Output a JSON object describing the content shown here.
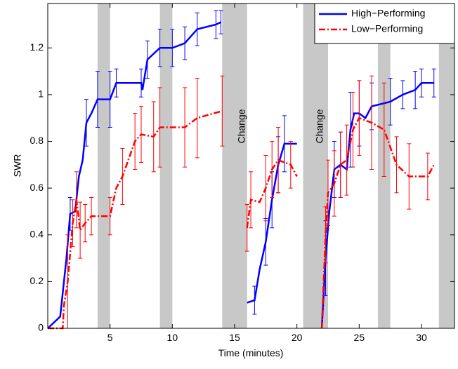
{
  "chart_data": {
    "type": "line",
    "xlabel": "Time (minutes)",
    "ylabel": "SWR",
    "xlim": [
      0,
      32.65
    ],
    "ylim": [
      0,
      1.39
    ],
    "xticks": [
      5,
      10,
      15,
      20,
      25,
      30
    ],
    "yticks": [
      0,
      0.2,
      0.4,
      0.6,
      0.8,
      1,
      1.2
    ],
    "shaded_intervals": [
      [
        4,
        5
      ],
      [
        9,
        10
      ],
      [
        14,
        16
      ],
      [
        20.5,
        22.5
      ],
      [
        26.5,
        27.5
      ],
      [
        31.4,
        32.65
      ]
    ],
    "shade_color": "#c8c8c8",
    "annotations": [
      "Change",
      "Change"
    ],
    "legend": "upper right",
    "series": [
      {
        "name": "High−Performing",
        "color": "#0000ff",
        "dash": "none",
        "x": [
          0,
          1.0,
          1.5,
          1.8,
          2.2,
          2.5,
          2.8,
          3.1,
          3.5,
          4,
          5,
          5.5,
          7.5,
          7.6,
          8,
          9,
          10,
          11,
          12,
          13.5,
          13.9,
          null,
          16,
          16.6,
          17,
          17.5,
          18,
          18.5,
          19,
          20,
          null,
          22,
          22.3,
          22.6,
          23,
          23.5,
          24,
          24.3,
          24.6,
          25,
          25.5,
          26,
          27.5,
          28.5,
          29.5,
          30,
          31
        ],
        "values": [
          0,
          0.05,
          0.3,
          0.49,
          0.5,
          0.65,
          0.72,
          0.88,
          0.92,
          0.98,
          0.98,
          1.05,
          1.05,
          1.02,
          1.15,
          1.2,
          1.2,
          1.22,
          1.28,
          1.3,
          1.31,
          null,
          0.11,
          0.12,
          0.25,
          0.37,
          0.55,
          0.7,
          0.79,
          0.79,
          null,
          0,
          0.3,
          0.5,
          0.68,
          0.7,
          0.68,
          0.85,
          0.92,
          0.92,
          0.9,
          0.95,
          0.97,
          1.0,
          1.02,
          1.05,
          1.05
        ],
        "errors": [
          null,
          null,
          null,
          0.07,
          null,
          null,
          null,
          0.1,
          null,
          0.12,
          0.12,
          0.06,
          0.06,
          null,
          0.08,
          0.08,
          0.08,
          0.07,
          0.07,
          0.06,
          0.05,
          null,
          null,
          0.06,
          null,
          0.1,
          0.12,
          0.12,
          0.12,
          null,
          null,
          null,
          0.16,
          null,
          0.12,
          0.14,
          null,
          0.16,
          null,
          0.14,
          null,
          0.1,
          0.1,
          0.06,
          0.08,
          0.06,
          0.06
        ]
      },
      {
        "name": "Low−Performing",
        "color": "#ff0000",
        "dash": "9,3,2,3",
        "x": [
          0,
          1.2,
          1.3,
          1.6,
          2.0,
          2.3,
          2.6,
          3.0,
          3.5,
          5,
          5.5,
          6,
          7,
          7.5,
          8.5,
          9,
          11,
          12,
          14,
          null,
          16,
          16.3,
          17,
          17.5,
          18,
          18.5,
          19.5,
          20,
          null,
          22,
          22.3,
          22.5,
          23,
          23.5,
          24,
          24.5,
          25,
          26,
          27,
          28,
          29,
          30.5,
          31
        ],
        "values": [
          0,
          0,
          0.1,
          0.2,
          0.45,
          0.55,
          0.42,
          0.45,
          0.48,
          0.48,
          0.6,
          0.65,
          0.8,
          0.83,
          0.82,
          0.86,
          0.86,
          0.9,
          0.93,
          null,
          0.43,
          0.55,
          0.54,
          0.6,
          0.68,
          0.72,
          0.7,
          0.65,
          null,
          0,
          0.4,
          0.58,
          0.62,
          0.7,
          0.72,
          0.85,
          0.9,
          0.88,
          0.85,
          0.7,
          0.65,
          0.65,
          0.7
        ],
        "errors": [
          null,
          null,
          null,
          0.2,
          0.1,
          0.12,
          0.12,
          0.08,
          0.08,
          0.08,
          null,
          0.12,
          0.12,
          0.12,
          0.15,
          0.17,
          0.17,
          0.17,
          0.15,
          null,
          0.1,
          0.12,
          null,
          0.14,
          0.12,
          0.14,
          0.1,
          null,
          null,
          null,
          0.12,
          0.14,
          0.14,
          0.14,
          0.15,
          0.16,
          0.16,
          0.2,
          0.2,
          0.12,
          0.14,
          0.1,
          null
        ]
      }
    ]
  }
}
